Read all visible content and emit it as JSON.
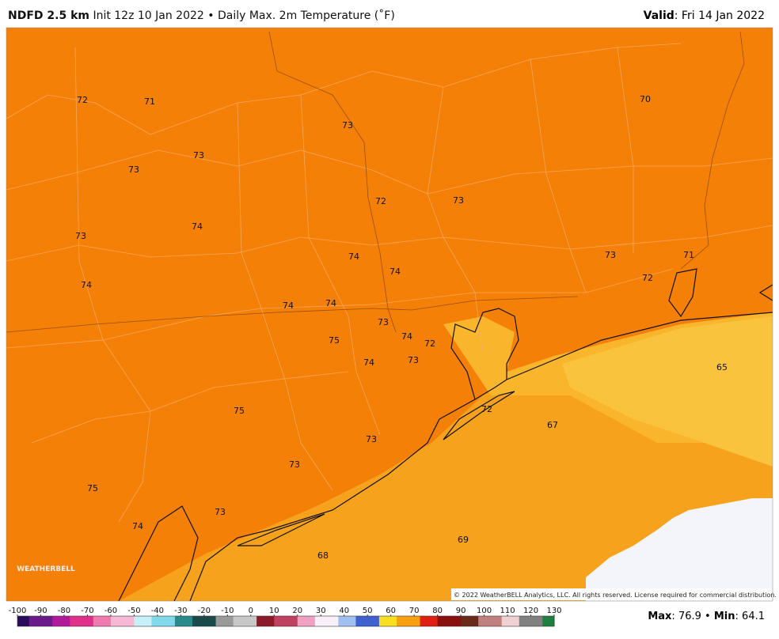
{
  "header": {
    "model": "NDFD 2.5 km",
    "description": "Init 12z 10 Jan 2022 • Daily Max. 2m Temperature (˚F)",
    "valid_label": "Valid",
    "valid_value": ": Fri 14 Jan 2022"
  },
  "map": {
    "labels": [
      72,
      71,
      73,
      70,
      73,
      73,
      72,
      73,
      74,
      73,
      74,
      74,
      73,
      71,
      72,
      74,
      74,
      74,
      73,
      74,
      72,
      75,
      74,
      73,
      65,
      75,
      72,
      67,
      73,
      73,
      75,
      73,
      74,
      69,
      68
    ],
    "logo": "WEATHERBELL",
    "copyright": "© 2022 WeatherBELL Analytics, LLC. All rights reserved. License required for commercial distribution."
  },
  "colorbar": {
    "ticks": [
      -100,
      -90,
      -80,
      -70,
      -60,
      -50,
      -40,
      -30,
      -20,
      -10,
      0,
      10,
      20,
      30,
      40,
      50,
      60,
      70,
      80,
      90,
      100,
      110,
      120,
      130
    ]
  },
  "stats": {
    "max_label": "Max",
    "colon": ":",
    "max": 76.9,
    "separator": "•",
    "min_label": "Min",
    "min": 64.1
  }
}
